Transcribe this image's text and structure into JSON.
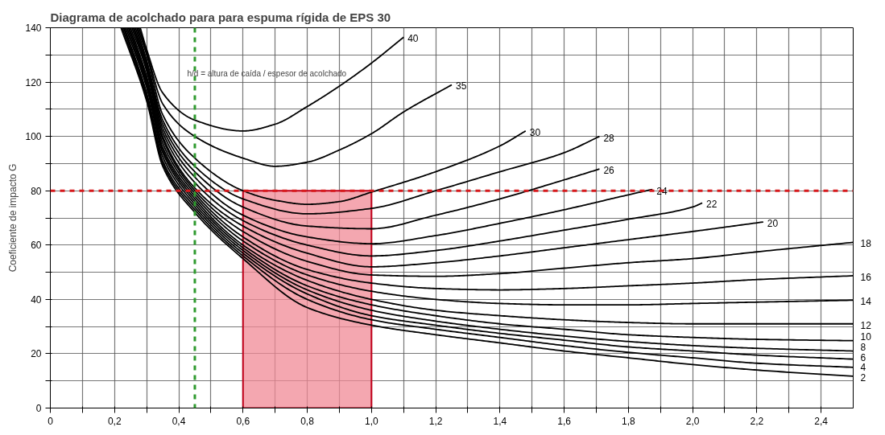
{
  "chart_data": {
    "type": "line",
    "title": "Diagrama de acolchado para para espuma rígida de EPS 30",
    "ylabel": "Coeficiente de impacto G",
    "xlim": [
      0,
      2.5
    ],
    "ylim": [
      0,
      140
    ],
    "xticks": [
      0,
      {
        "value": 0.1,
        "label": null
      },
      {
        "value": 0.2,
        "label": "0,2"
      },
      {
        "value": 0.3,
        "label": null
      },
      {
        "value": 0.4,
        "label": "0,4"
      },
      {
        "value": 0.5,
        "label": null
      },
      {
        "value": 0.6,
        "label": "0,6"
      },
      {
        "value": 0.7,
        "label": null
      },
      {
        "value": 0.8,
        "label": "0,8"
      },
      {
        "value": 0.9,
        "label": null
      },
      {
        "value": 1.0,
        "label": "1,0"
      },
      {
        "value": 1.1,
        "label": null
      },
      {
        "value": 1.2,
        "label": "1,2"
      },
      {
        "value": 1.3,
        "label": null
      },
      {
        "value": 1.4,
        "label": "1,4"
      },
      {
        "value": 1.5,
        "label": null
      },
      {
        "value": 1.6,
        "label": "1,6"
      },
      {
        "value": 1.7,
        "label": null
      },
      {
        "value": 1.8,
        "label": "1,8"
      },
      {
        "value": 1.9,
        "label": null
      },
      {
        "value": 2.0,
        "label": "2,0"
      },
      {
        "value": 2.1,
        "label": null
      },
      {
        "value": 2.2,
        "label": "2,2"
      },
      {
        "value": 2.3,
        "label": null
      },
      {
        "value": 2.4,
        "label": "2,4"
      }
    ],
    "yticks": [
      0,
      {
        "value": 10,
        "label": null
      },
      20,
      {
        "value": 30,
        "label": null
      },
      40,
      {
        "value": 50,
        "label": null
      },
      60,
      {
        "value": 70,
        "label": null
      },
      80,
      {
        "value": 90,
        "label": null
      },
      100,
      {
        "value": 110,
        "label": null
      },
      120,
      {
        "value": 130,
        "label": null
      },
      140
    ],
    "grid": true,
    "line_style": "solid",
    "marker": "none",
    "annotations": [
      "h/d = altura de caída / espesor de acolchado"
    ],
    "ref_lines": [
      {
        "axis": "y",
        "value": 80,
        "label": null,
        "color": "#d7191c",
        "line_style": "dashed"
      },
      {
        "axis": "x",
        "value": 0.45,
        "label": null,
        "color": "#2e9a2e",
        "line_style": "dashed"
      }
    ],
    "bands": [
      {
        "axis": "x",
        "from": 0.6,
        "to": 1.0,
        "label": null,
        "color": "#f08a96"
      }
    ],
    "series": [
      {
        "name": "40",
        "color": "#000000",
        "x": [
          0.28,
          0.3,
          0.35,
          0.45,
          0.6,
          0.7,
          0.8,
          0.9,
          1.0,
          1.1
        ],
        "values": [
          140,
          132,
          116,
          106,
          102,
          104.5,
          111,
          118.5,
          127,
          136.5
        ]
      },
      {
        "name": "35",
        "color": "#000000",
        "x": [
          0.276,
          0.3,
          0.35,
          0.45,
          0.6,
          0.7,
          0.8,
          0.9,
          1.0,
          1.1,
          1.25
        ],
        "values": [
          140,
          131,
          112,
          100,
          92,
          89,
          90.5,
          95,
          101,
          109,
          119
        ]
      },
      {
        "name": "30",
        "color": "#000000",
        "x": [
          0.272,
          0.3,
          0.35,
          0.45,
          0.6,
          0.7,
          0.8,
          0.9,
          1.0,
          1.2,
          1.4,
          1.48
        ],
        "values": [
          140,
          130,
          108,
          92,
          80,
          76.5,
          75,
          76,
          79.5,
          87,
          96.5,
          102
        ]
      },
      {
        "name": "28",
        "color": "#000000",
        "x": [
          0.269,
          0.3,
          0.35,
          0.45,
          0.6,
          0.8,
          1.0,
          1.2,
          1.4,
          1.6,
          1.71
        ],
        "values": [
          140,
          128,
          106,
          89,
          77,
          71.5,
          73.5,
          80,
          87,
          94,
          100
        ]
      },
      {
        "name": "26",
        "color": "#000000",
        "x": [
          0.265,
          0.3,
          0.35,
          0.45,
          0.6,
          0.8,
          1.0,
          1.2,
          1.4,
          1.6,
          1.71
        ],
        "values": [
          140,
          127,
          104.5,
          87,
          74,
          67,
          66,
          71,
          77,
          84,
          88
        ]
      },
      {
        "name": "24",
        "color": "#000000",
        "x": [
          0.261,
          0.3,
          0.35,
          0.45,
          0.6,
          0.8,
          1.0,
          1.2,
          1.4,
          1.6,
          1.8,
          1.875
        ],
        "values": [
          140,
          126,
          103,
          85,
          71,
          63,
          60.5,
          63.5,
          68,
          73,
          78.5,
          80.5
        ]
      },
      {
        "name": "22",
        "color": "#000000",
        "x": [
          0.258,
          0.3,
          0.35,
          0.45,
          0.6,
          0.8,
          1.0,
          1.2,
          1.4,
          1.6,
          1.8,
          2.0,
          2.03
        ],
        "values": [
          140,
          125,
          101.5,
          83,
          69,
          60,
          56,
          58,
          61.5,
          65.5,
          69.5,
          74,
          75.5
        ]
      },
      {
        "name": "20",
        "color": "#000000",
        "x": [
          0.254,
          0.3,
          0.35,
          0.45,
          0.6,
          0.8,
          1.0,
          1.2,
          1.4,
          1.6,
          1.8,
          2.0,
          2.22
        ],
        "values": [
          140,
          124,
          100,
          81,
          67,
          57,
          52,
          53.5,
          56,
          59,
          62,
          65,
          68.5
        ]
      },
      {
        "name": "18",
        "color": "#000000",
        "x": [
          0.25,
          0.3,
          0.35,
          0.45,
          0.6,
          0.8,
          1.0,
          1.2,
          1.4,
          1.6,
          1.8,
          2.0,
          2.2,
          2.5
        ],
        "values": [
          140,
          122,
          99,
          80,
          65,
          54,
          49,
          48.5,
          49.5,
          51.5,
          53.5,
          55,
          57.5,
          61
        ]
      },
      {
        "name": "16",
        "color": "#000000",
        "x": [
          0.246,
          0.3,
          0.35,
          0.45,
          0.6,
          0.8,
          1.0,
          1.2,
          1.4,
          1.6,
          1.8,
          2.0,
          2.2,
          2.5
        ],
        "values": [
          140,
          121,
          97.5,
          79,
          63,
          51,
          46,
          44,
          43.5,
          44,
          45,
          46,
          47.3,
          48.7
        ]
      },
      {
        "name": "14",
        "color": "#000000",
        "x": [
          0.243,
          0.3,
          0.35,
          0.45,
          0.6,
          0.8,
          1.0,
          1.2,
          1.4,
          1.6,
          1.8,
          2.0,
          2.2,
          2.5
        ],
        "values": [
          140,
          120,
          96,
          78,
          61.5,
          49,
          43,
          40,
          38.5,
          38,
          38,
          38.5,
          39,
          39.7
        ]
      },
      {
        "name": "12",
        "color": "#000000",
        "x": [
          0.239,
          0.3,
          0.35,
          0.45,
          0.6,
          0.8,
          1.0,
          1.2,
          1.4,
          1.6,
          1.8,
          2.0,
          2.2,
          2.5
        ],
        "values": [
          140,
          119,
          95,
          77,
          60,
          47,
          40,
          36,
          34,
          32.5,
          31.5,
          31,
          31,
          31
        ]
      },
      {
        "name": "10",
        "color": "#000000",
        "x": [
          0.235,
          0.3,
          0.35,
          0.45,
          0.6,
          0.8,
          1.0,
          1.2,
          1.4,
          1.6,
          1.8,
          2.0,
          2.2,
          2.5
        ],
        "values": [
          140,
          118,
          94,
          76,
          59,
          45,
          38,
          34,
          31,
          29,
          27,
          26,
          25.3,
          24.8
        ]
      },
      {
        "name": "8",
        "color": "#000000",
        "x": [
          0.231,
          0.3,
          0.35,
          0.45,
          0.6,
          0.8,
          1.0,
          1.2,
          1.4,
          1.6,
          1.8,
          2.0,
          2.2,
          2.5
        ],
        "values": [
          140,
          116,
          92.5,
          75,
          58,
          43.5,
          36,
          32,
          29,
          26.5,
          24.5,
          23,
          22,
          21
        ]
      },
      {
        "name": "6",
        "color": "#000000",
        "x": [
          0.228,
          0.3,
          0.35,
          0.45,
          0.6,
          0.8,
          1.0,
          1.2,
          1.4,
          1.6,
          1.8,
          2.0,
          2.2,
          2.5
        ],
        "values": [
          140,
          115,
          91,
          74,
          57,
          42,
          34,
          30.5,
          27.5,
          25,
          22.5,
          21,
          19.5,
          18
        ]
      },
      {
        "name": "4",
        "color": "#000000",
        "x": [
          0.224,
          0.3,
          0.35,
          0.45,
          0.6,
          0.8,
          1.0,
          1.2,
          1.4,
          1.6,
          1.8,
          2.0,
          2.2,
          2.5
        ],
        "values": [
          140,
          114,
          90,
          73,
          56,
          40,
          32.5,
          29,
          26,
          23,
          20.5,
          18.5,
          16.5,
          15
        ]
      },
      {
        "name": "2",
        "color": "#000000",
        "x": [
          0.22,
          0.3,
          0.35,
          0.45,
          0.6,
          0.8,
          1.0,
          1.2,
          1.4,
          1.6,
          1.8,
          2.0,
          2.2,
          2.5
        ],
        "values": [
          140,
          113,
          89,
          72,
          55,
          37,
          30.5,
          27,
          24,
          21,
          18.5,
          16,
          14,
          11.7
        ]
      }
    ]
  }
}
